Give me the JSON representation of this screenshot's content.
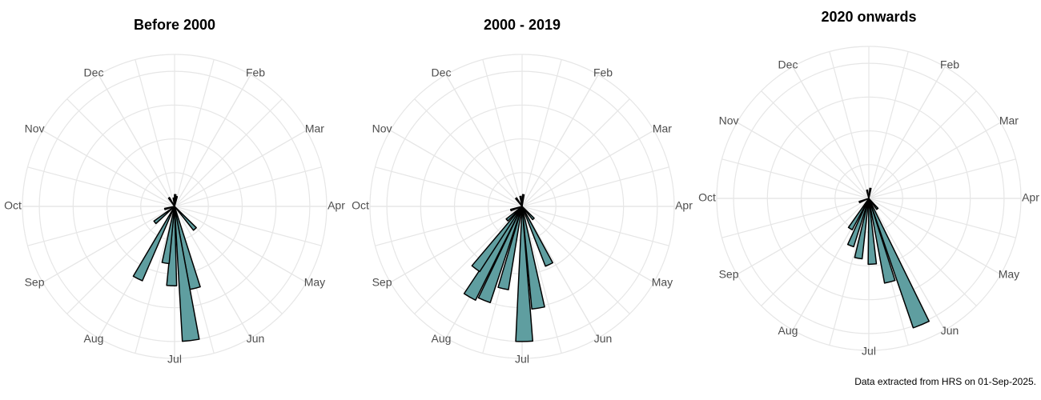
{
  "chart_data": [
    {
      "type": "rose",
      "title": "Before 2000",
      "color": "#5f9ea0",
      "x": [
        0.1,
        0.4,
        11.8,
        4.6,
        5.53,
        5.77,
        6.07,
        6.3,
        6.9,
        7.7,
        8.5,
        10.9
      ],
      "values": [
        0.35,
        0.3,
        0.25,
        0.9,
        2.5,
        4.0,
        2.35,
        1.7,
        2.4,
        0.75,
        0.3,
        0.3
      ],
      "xlim": [
        0,
        12
      ],
      "ylim": [
        0,
        4.5
      ],
      "yticks": [
        1,
        2,
        3,
        4
      ],
      "xticks": [
        {
          "value": 1,
          "label": "Feb"
        },
        {
          "value": 2,
          "label": "Mar"
        },
        {
          "value": 3,
          "label": "Apr"
        },
        {
          "value": 4,
          "label": "May"
        },
        {
          "value": 5,
          "label": "Jun"
        },
        {
          "value": 6,
          "label": "Jul"
        },
        {
          "value": 7,
          "label": "Aug"
        },
        {
          "value": 8,
          "label": "Sep"
        },
        {
          "value": 9,
          "label": "Oct"
        },
        {
          "value": 10,
          "label": "Nov"
        },
        {
          "value": 11,
          "label": "Dec"
        }
      ]
    },
    {
      "type": "rose",
      "title": "2000 - 2019",
      "color": "#5f9ea0",
      "x": [
        0.2,
        11.7,
        4.6,
        5.17,
        5.7,
        5.97,
        6.43,
        6.73,
        7.0,
        7.22,
        7.6,
        8.4,
        10.8
      ],
      "values": [
        0.35,
        0.3,
        0.5,
        1.9,
        3.05,
        4.0,
        2.5,
        3.0,
        3.1,
        2.3,
        0.6,
        0.35,
        0.3
      ],
      "xlim": [
        0,
        12
      ],
      "ylim": [
        0,
        4.5
      ],
      "yticks": [
        1,
        2,
        3,
        4
      ],
      "xticks": [
        {
          "value": 1,
          "label": "Feb"
        },
        {
          "value": 2,
          "label": "Mar"
        },
        {
          "value": 3,
          "label": "Apr"
        },
        {
          "value": 4,
          "label": "May"
        },
        {
          "value": 5,
          "label": "Jun"
        },
        {
          "value": 6,
          "label": "Jul"
        },
        {
          "value": 7,
          "label": "Aug"
        },
        {
          "value": 8,
          "label": "Sep"
        },
        {
          "value": 9,
          "label": "Oct"
        },
        {
          "value": 10,
          "label": "Nov"
        },
        {
          "value": 11,
          "label": "Dec"
        }
      ]
    },
    {
      "type": "rose",
      "title": "2020 onwards",
      "color": "#5f9ea0",
      "x": [
        0.3,
        11.6,
        4.7,
        5.25,
        5.53,
        5.9,
        6.33,
        6.7,
        7.05,
        8.3
      ],
      "values": [
        0.3,
        0.25,
        0.4,
        4.05,
        2.55,
        1.95,
        1.8,
        1.5,
        1.05,
        0.3
      ],
      "xlim": [
        0,
        12
      ],
      "ylim": [
        0,
        4.5
      ],
      "yticks": [
        1,
        2,
        3,
        4
      ],
      "xticks": [
        {
          "value": 1,
          "label": "Feb"
        },
        {
          "value": 2,
          "label": "Mar"
        },
        {
          "value": 3,
          "label": "Apr"
        },
        {
          "value": 4,
          "label": "May"
        },
        {
          "value": 5,
          "label": "Jun"
        },
        {
          "value": 6,
          "label": "Jul"
        },
        {
          "value": 7,
          "label": "Aug"
        },
        {
          "value": 8,
          "label": "Sep"
        },
        {
          "value": 9,
          "label": "Oct"
        },
        {
          "value": 10,
          "label": "Nov"
        },
        {
          "value": 11,
          "label": "Dec"
        }
      ]
    }
  ],
  "caption": "Data extracted from HRS on 01-Sep-2025."
}
